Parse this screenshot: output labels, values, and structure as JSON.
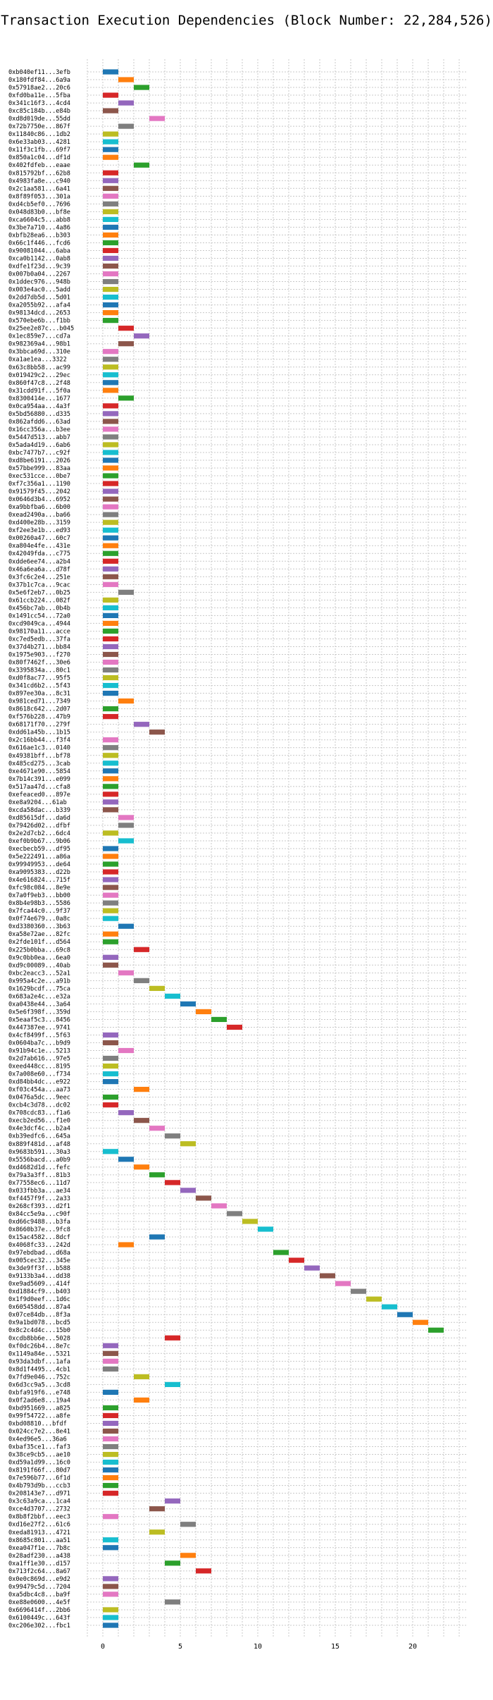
{
  "chart_data": {
    "type": "bar",
    "orientation": "horizontal",
    "title": "Transaction Execution Dependencies (Block Number: 22,284,526)",
    "xlabel": "",
    "ylabel": "",
    "xlim": [
      -1,
      23.5
    ],
    "xticks": [
      0,
      5,
      10,
      15,
      20
    ],
    "grid": true,
    "bar_width": 1,
    "palette": [
      "#1f77b4",
      "#ff7f0e",
      "#2ca02c",
      "#d62728",
      "#9467bd",
      "#8c564b",
      "#e377c2",
      "#7f7f7f",
      "#bcbd22",
      "#17becf"
    ],
    "transactions": [
      {
        "label": "0xb040ef11...3efb",
        "start": 0,
        "color": 0
      },
      {
        "label": "0x180fdf84...6a9a",
        "start": 1,
        "color": 1
      },
      {
        "label": "0x57918ae2...20c6",
        "start": 2,
        "color": 2
      },
      {
        "label": "0xfd0ba11e...5fba",
        "start": 0,
        "color": 3
      },
      {
        "label": "0x341c16f3...4cd4",
        "start": 1,
        "color": 4
      },
      {
        "label": "0xc85c184b...e84b",
        "start": 0,
        "color": 5
      },
      {
        "label": "0xd8d019de...55dd",
        "start": 3,
        "color": 6
      },
      {
        "label": "0x72b7750e...867f",
        "start": 1,
        "color": 7
      },
      {
        "label": "0x11840c86...1db2",
        "start": 0,
        "color": 8
      },
      {
        "label": "0x6e33ab03...4281",
        "start": 0,
        "color": 9
      },
      {
        "label": "0x11f3c1fb...69f7",
        "start": 0,
        "color": 0
      },
      {
        "label": "0x850a1c04...df1d",
        "start": 0,
        "color": 1
      },
      {
        "label": "0x402fdfeb...eaae",
        "start": 2,
        "color": 2
      },
      {
        "label": "0x815792bf...62b8",
        "start": 0,
        "color": 3
      },
      {
        "label": "0x4983fa8e...c940",
        "start": 0,
        "color": 4
      },
      {
        "label": "0x2c1aa581...6a41",
        "start": 0,
        "color": 5
      },
      {
        "label": "0x8f89f053...301a",
        "start": 0,
        "color": 6
      },
      {
        "label": "0xd4cb5ef0...7696",
        "start": 0,
        "color": 7
      },
      {
        "label": "0x048d83b0...bf8e",
        "start": 0,
        "color": 8
      },
      {
        "label": "0xca6604c5...abb8",
        "start": 0,
        "color": 9
      },
      {
        "label": "0x3be7a710...4a86",
        "start": 0,
        "color": 0
      },
      {
        "label": "0xbfb28ea6...b303",
        "start": 0,
        "color": 1
      },
      {
        "label": "0x66c1f446...fcd6",
        "start": 0,
        "color": 2
      },
      {
        "label": "0x90081044...6aba",
        "start": 0,
        "color": 3
      },
      {
        "label": "0xca0b1142...0ab8",
        "start": 0,
        "color": 4
      },
      {
        "label": "0xdfe1f23d...9c39",
        "start": 0,
        "color": 5
      },
      {
        "label": "0x007b0a04...2267",
        "start": 0,
        "color": 6
      },
      {
        "label": "0x1ddec976...948b",
        "start": 0,
        "color": 7
      },
      {
        "label": "0x003e4ac0...5add",
        "start": 0,
        "color": 8
      },
      {
        "label": "0x2dd7db5d...5d01",
        "start": 0,
        "color": 9
      },
      {
        "label": "0xa2055b92...afa4",
        "start": 0,
        "color": 0
      },
      {
        "label": "0x98134dcd...2653",
        "start": 0,
        "color": 1
      },
      {
        "label": "0x570ebe6b...f1bb",
        "start": 0,
        "color": 2
      },
      {
        "label": "0x25ee2e87c...b045",
        "start": 1,
        "color": 3
      },
      {
        "label": "0x1ec859e7...cd7a",
        "start": 2,
        "color": 4
      },
      {
        "label": "0x982369a4...98b1",
        "start": 1,
        "color": 5
      },
      {
        "label": "0x3bbca69d...310e",
        "start": 0,
        "color": 6
      },
      {
        "label": "0xa1ae1ea...3322",
        "start": 0,
        "color": 7
      },
      {
        "label": "0x63c8bb58...ac99",
        "start": 0,
        "color": 8
      },
      {
        "label": "0x019429c2...29ec",
        "start": 0,
        "color": 9
      },
      {
        "label": "0x860f47c8...2f48",
        "start": 0,
        "color": 0
      },
      {
        "label": "0x31cdd91f...5f0a",
        "start": 0,
        "color": 1
      },
      {
        "label": "0x8300414e...1677",
        "start": 1,
        "color": 2
      },
      {
        "label": "0x0ca954aa...4a3f",
        "start": 0,
        "color": 3
      },
      {
        "label": "0x5bd56880...d335",
        "start": 0,
        "color": 4
      },
      {
        "label": "0x862afdd6...63ad",
        "start": 0,
        "color": 5
      },
      {
        "label": "0x16cc356a...b3ee",
        "start": 0,
        "color": 6
      },
      {
        "label": "0x5447d513...abb7",
        "start": 0,
        "color": 7
      },
      {
        "label": "0x5ada4d19...6ab6",
        "start": 0,
        "color": 8
      },
      {
        "label": "0xbc7477b7...c92f",
        "start": 0,
        "color": 9
      },
      {
        "label": "0xd8be6191...2026",
        "start": 0,
        "color": 0
      },
      {
        "label": "0x57bbe999...83aa",
        "start": 0,
        "color": 1
      },
      {
        "label": "0xec531cce...0be7",
        "start": 0,
        "color": 2
      },
      {
        "label": "0xf7c356a1...1190",
        "start": 0,
        "color": 3
      },
      {
        "label": "0x91579f45...2042",
        "start": 0,
        "color": 4
      },
      {
        "label": "0x0646d3b4...6952",
        "start": 0,
        "color": 5
      },
      {
        "label": "0xa9bbfba6...6b00",
        "start": 0,
        "color": 6
      },
      {
        "label": "0xead2490a...ba66",
        "start": 0,
        "color": 7
      },
      {
        "label": "0xd400e28b...3159",
        "start": 0,
        "color": 8
      },
      {
        "label": "0xf2ee3e1b...ed93",
        "start": 0,
        "color": 9
      },
      {
        "label": "0x00260a47...60c7",
        "start": 0,
        "color": 0
      },
      {
        "label": "0xa804e4fe...431e",
        "start": 0,
        "color": 1
      },
      {
        "label": "0x42049fda...c775",
        "start": 0,
        "color": 2
      },
      {
        "label": "0xdde6ee74...a2b4",
        "start": 0,
        "color": 3
      },
      {
        "label": "0x46a6ea6a...d78f",
        "start": 0,
        "color": 4
      },
      {
        "label": "0x3fc6c2e4...251e",
        "start": 0,
        "color": 5
      },
      {
        "label": "0x37b1c7ca...9cac",
        "start": 0,
        "color": 6
      },
      {
        "label": "0x5e6f2eb7...0b25",
        "start": 1,
        "color": 7
      },
      {
        "label": "0x61ccb224...082f",
        "start": 0,
        "color": 8
      },
      {
        "label": "0x456bc7ab...0b4b",
        "start": 0,
        "color": 9
      },
      {
        "label": "0x1491cc54...72a0",
        "start": 0,
        "color": 0
      },
      {
        "label": "0xcd9049ca...4944",
        "start": 0,
        "color": 1
      },
      {
        "label": "0x98170a11...acce",
        "start": 0,
        "color": 2
      },
      {
        "label": "0xc7ed5edb...37fa",
        "start": 0,
        "color": 3
      },
      {
        "label": "0x37d4b271...bb84",
        "start": 0,
        "color": 4
      },
      {
        "label": "0x1975e903...f270",
        "start": 0,
        "color": 5
      },
      {
        "label": "0x80f7462f...30e6",
        "start": 0,
        "color": 6
      },
      {
        "label": "0x3395834a...80c1",
        "start": 0,
        "color": 7
      },
      {
        "label": "0xd0f8ac77...95f5",
        "start": 0,
        "color": 8
      },
      {
        "label": "0x341cd6b2...5f43",
        "start": 0,
        "color": 9
      },
      {
        "label": "0x897ee30a...8c31",
        "start": 0,
        "color": 0
      },
      {
        "label": "0x981ced71...7349",
        "start": 1,
        "color": 1
      },
      {
        "label": "0x8618c642...2d07",
        "start": 0,
        "color": 2
      },
      {
        "label": "0xf576b228...47b9",
        "start": 0,
        "color": 3
      },
      {
        "label": "0x68171f70...279f",
        "start": 2,
        "color": 4
      },
      {
        "label": "0xdd61a45b...1b15",
        "start": 3,
        "color": 5
      },
      {
        "label": "0x2c16bb44...f3f4",
        "start": 0,
        "color": 6
      },
      {
        "label": "0x616ae1c3...0140",
        "start": 0,
        "color": 7
      },
      {
        "label": "0x49381bff...bf78",
        "start": 0,
        "color": 8
      },
      {
        "label": "0x485cd275...3cab",
        "start": 0,
        "color": 9
      },
      {
        "label": "0xe4671e90...5854",
        "start": 0,
        "color": 0
      },
      {
        "label": "0x7b14c391...e099",
        "start": 0,
        "color": 1
      },
      {
        "label": "0x517aa47d...cfa8",
        "start": 0,
        "color": 2
      },
      {
        "label": "0xefeaced0...897e",
        "start": 0,
        "color": 3
      },
      {
        "label": "0xe8a9204...61ab",
        "start": 0,
        "color": 4
      },
      {
        "label": "0xcda58dac...b339",
        "start": 0,
        "color": 5
      },
      {
        "label": "0xd85615df...da6d",
        "start": 1,
        "color": 6
      },
      {
        "label": "0x79426d02...dfbf",
        "start": 1,
        "color": 7
      },
      {
        "label": "0x2e2d7cb2...6dc4",
        "start": 0,
        "color": 8
      },
      {
        "label": "0xef0b9b67...9b06",
        "start": 1,
        "color": 9
      },
      {
        "label": "0xecbecb59...df95",
        "start": 0,
        "color": 0
      },
      {
        "label": "0x5e222491...a86a",
        "start": 0,
        "color": 1
      },
      {
        "label": "0x99949953...de64",
        "start": 0,
        "color": 2
      },
      {
        "label": "0xa9095383...d22b",
        "start": 0,
        "color": 3
      },
      {
        "label": "0x4e616824...715f",
        "start": 0,
        "color": 4
      },
      {
        "label": "0xfc98c084...8e9e",
        "start": 0,
        "color": 5
      },
      {
        "label": "0x7a0f9eb3...bb00",
        "start": 0,
        "color": 6
      },
      {
        "label": "0x8b4e98b3...5586",
        "start": 0,
        "color": 7
      },
      {
        "label": "0x7fca44c0...9f37",
        "start": 0,
        "color": 8
      },
      {
        "label": "0x0f74e679...0a8c",
        "start": 0,
        "color": 9
      },
      {
        "label": "0xd3380360...3b63",
        "start": 1,
        "color": 0
      },
      {
        "label": "0xa58e72ae...82fc",
        "start": 0,
        "color": 1
      },
      {
        "label": "0x2fde101f...d564",
        "start": 0,
        "color": 2
      },
      {
        "label": "0x225b0bba...69c8",
        "start": 2,
        "color": 3
      },
      {
        "label": "0x9c0bb0ea...6ea0",
        "start": 0,
        "color": 4
      },
      {
        "label": "0xd9c00089...40ab",
        "start": 0,
        "color": 5
      },
      {
        "label": "0xbc2eacc3...52a1",
        "start": 1,
        "color": 6
      },
      {
        "label": "0x995a4c2e...a91b",
        "start": 2,
        "color": 7
      },
      {
        "label": "0x1629bcdf...75ca",
        "start": 3,
        "color": 8
      },
      {
        "label": "0x683a2e4c...e32a",
        "start": 4,
        "color": 9
      },
      {
        "label": "0xa0438e44...3a64",
        "start": 5,
        "color": 0
      },
      {
        "label": "0x5e6f398f...359d",
        "start": 6,
        "color": 1
      },
      {
        "label": "0x5eaaf5c3...8456",
        "start": 7,
        "color": 2
      },
      {
        "label": "0x447387ee...9741",
        "start": 8,
        "color": 3
      },
      {
        "label": "0x4cf8499f...5f63",
        "start": 0,
        "color": 4
      },
      {
        "label": "0x0604ba7c...b9d9",
        "start": 0,
        "color": 5
      },
      {
        "label": "0x91b94c1e...5213",
        "start": 1,
        "color": 6
      },
      {
        "label": "0x2d7ab616...97e5",
        "start": 0,
        "color": 7
      },
      {
        "label": "0xeed448cc...8195",
        "start": 0,
        "color": 8
      },
      {
        "label": "0x7a008e60...f734",
        "start": 0,
        "color": 9
      },
      {
        "label": "0xd84bb4dc...e922",
        "start": 0,
        "color": 0
      },
      {
        "label": "0xf03c454a...aa73",
        "start": 2,
        "color": 1
      },
      {
        "label": "0x0476a5dc...9eec",
        "start": 0,
        "color": 2
      },
      {
        "label": "0xcb4c3d78...dc02",
        "start": 0,
        "color": 3
      },
      {
        "label": "0x708cdc83...f1a6",
        "start": 1,
        "color": 4
      },
      {
        "label": "0xecb2ed56...f1e0",
        "start": 2,
        "color": 5
      },
      {
        "label": "0x4e3dcf4c...b2a4",
        "start": 3,
        "color": 6
      },
      {
        "label": "0xb39edfc6...645a",
        "start": 4,
        "color": 7
      },
      {
        "label": "0x889f481d...af48",
        "start": 5,
        "color": 8
      },
      {
        "label": "0x9683b591...30a3",
        "start": 0,
        "color": 9
      },
      {
        "label": "0x5556bacd...a0b9",
        "start": 1,
        "color": 0
      },
      {
        "label": "0xd4682d1d...fefc",
        "start": 2,
        "color": 1
      },
      {
        "label": "0x79a3a3ff...81b3",
        "start": 3,
        "color": 2
      },
      {
        "label": "0x77558ec6...11d7",
        "start": 4,
        "color": 3
      },
      {
        "label": "0x033fbb3a...ae34",
        "start": 5,
        "color": 4
      },
      {
        "label": "0xf4457f9f...2a33",
        "start": 6,
        "color": 5
      },
      {
        "label": "0x268cf393...d2f1",
        "start": 7,
        "color": 6
      },
      {
        "label": "0x84cc5e9a...c90f",
        "start": 8,
        "color": 7
      },
      {
        "label": "0xd66c9488...b3fa",
        "start": 9,
        "color": 8
      },
      {
        "label": "0x8660b37e...9fc8",
        "start": 10,
        "color": 9
      },
      {
        "label": "0x15ac4582...8dcf",
        "start": 3,
        "color": 0
      },
      {
        "label": "0x4068fc33...242d",
        "start": 1,
        "color": 1
      },
      {
        "label": "0x97ebdbad...d68a",
        "start": 11,
        "color": 2
      },
      {
        "label": "0x005cec32...345e",
        "start": 12,
        "color": 3
      },
      {
        "label": "0x3de9ff3f...b588",
        "start": 13,
        "color": 4
      },
      {
        "label": "0x9133b3a4...dd38",
        "start": 14,
        "color": 5
      },
      {
        "label": "0xe9ad5609...414f",
        "start": 15,
        "color": 6
      },
      {
        "label": "0xd1884cf9...b403",
        "start": 16,
        "color": 7
      },
      {
        "label": "0x1f9d0eef...1d6c",
        "start": 17,
        "color": 8
      },
      {
        "label": "0x605458dd...87a4",
        "start": 18,
        "color": 9
      },
      {
        "label": "0x07ce84db...8f3a",
        "start": 19,
        "color": 0
      },
      {
        "label": "0x9a1bd078...bcd5",
        "start": 20,
        "color": 1
      },
      {
        "label": "0x8c2c4d4c...15b0",
        "start": 21,
        "color": 2
      },
      {
        "label": "0xcdb8bb6e...5028",
        "start": 4,
        "color": 3
      },
      {
        "label": "0xf0dc26b4...8e7c",
        "start": 0,
        "color": 4
      },
      {
        "label": "0x1149a84e...5321",
        "start": 0,
        "color": 5
      },
      {
        "label": "0x93da3dbf...1afa",
        "start": 0,
        "color": 6
      },
      {
        "label": "0x8d1f4495...4cb1",
        "start": 0,
        "color": 7
      },
      {
        "label": "0x7fd9e046...752c",
        "start": 2,
        "color": 8
      },
      {
        "label": "0x6d3cc9a5...3cd8",
        "start": 4,
        "color": 9
      },
      {
        "label": "0xbfa919f6...e748",
        "start": 0,
        "color": 0
      },
      {
        "label": "0x0f2ad6e8...19a4",
        "start": 2,
        "color": 1
      },
      {
        "label": "0xbd951669...a825",
        "start": 0,
        "color": 2
      },
      {
        "label": "0x99f54722...a8fe",
        "start": 0,
        "color": 3
      },
      {
        "label": "0xbd08810...bfdf",
        "start": 0,
        "color": 4
      },
      {
        "label": "0x024cc7e2...8e41",
        "start": 0,
        "color": 5
      },
      {
        "label": "0x4ed96e5...36a6",
        "start": 0,
        "color": 6
      },
      {
        "label": "0xbaf35ce1...faf3",
        "start": 0,
        "color": 7
      },
      {
        "label": "0x38ce9cb5...ae10",
        "start": 0,
        "color": 8
      },
      {
        "label": "0xd59a1d99...16c0",
        "start": 0,
        "color": 9
      },
      {
        "label": "0x8191f66f...80d7",
        "start": 0,
        "color": 0
      },
      {
        "label": "0x7e596b77...6f1d",
        "start": 0,
        "color": 1
      },
      {
        "label": "0x4b793d9b...ccb3",
        "start": 0,
        "color": 2
      },
      {
        "label": "0x208143e7...d971",
        "start": 0,
        "color": 3
      },
      {
        "label": "0x3c63a9ca...1ca4",
        "start": 4,
        "color": 4
      },
      {
        "label": "0xce4d3707...2732",
        "start": 3,
        "color": 5
      },
      {
        "label": "0x8b8f2bbf...eec3",
        "start": 0,
        "color": 6
      },
      {
        "label": "0xd16e27f2...61c6",
        "start": 5,
        "color": 7
      },
      {
        "label": "0xeda81913...4721",
        "start": 3,
        "color": 8
      },
      {
        "label": "0x8685c801...aa51",
        "start": 0,
        "color": 9
      },
      {
        "label": "0xea047f1e...7b8c",
        "start": 0,
        "color": 0
      },
      {
        "label": "0x28adf230...a438",
        "start": 5,
        "color": 1
      },
      {
        "label": "0xa1ff1e30...d157",
        "start": 4,
        "color": 2
      },
      {
        "label": "0x713f2c64...8a67",
        "start": 6,
        "color": 3
      },
      {
        "label": "0x0e0c869d...e9d2",
        "start": 0,
        "color": 4
      },
      {
        "label": "0x99479c5d...7204",
        "start": 0,
        "color": 5
      },
      {
        "label": "0xa5dbc4c8...ba9f",
        "start": 0,
        "color": 6
      },
      {
        "label": "0xe88e0600...4e5f",
        "start": 4,
        "color": 7
      },
      {
        "label": "0x6696414f...2bb6",
        "start": 0,
        "color": 8
      },
      {
        "label": "0x6100449c...643f",
        "start": 0,
        "color": 9
      },
      {
        "label": "0xc206e302...fbc1",
        "start": 0,
        "color": 0
      }
    ]
  }
}
